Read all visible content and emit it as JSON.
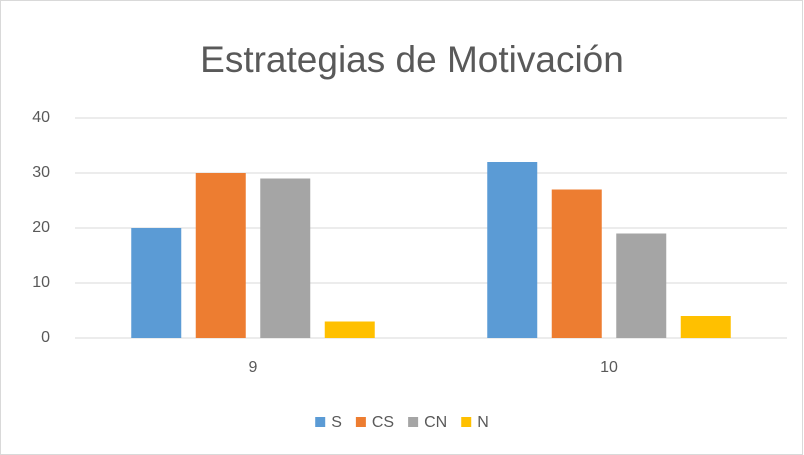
{
  "chart_data": {
    "type": "bar",
    "title": "Estrategias de Motivación",
    "categories": [
      "9",
      "10"
    ],
    "series": [
      {
        "name": "S",
        "color": "#5b9bd5",
        "values": [
          20,
          32
        ]
      },
      {
        "name": "CS",
        "color": "#ed7d31",
        "values": [
          30,
          27
        ]
      },
      {
        "name": "CN",
        "color": "#a5a5a5",
        "values": [
          29,
          19
        ]
      },
      {
        "name": "N",
        "color": "#ffc000",
        "values": [
          3,
          4
        ]
      }
    ],
    "ylim": [
      0,
      40
    ],
    "yticks": [
      0,
      10,
      20,
      30,
      40
    ],
    "grid": true,
    "legend": "bottom"
  }
}
